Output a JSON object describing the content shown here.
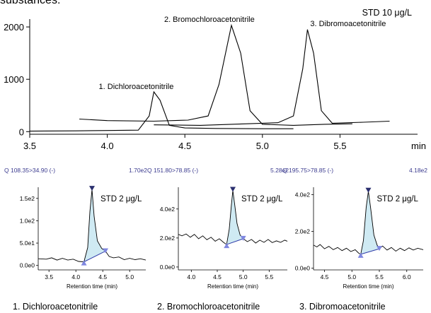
{
  "header_text": "substances:",
  "chart_data": [
    {
      "type": "line",
      "label": "STD 10 μg/L",
      "xlim": [
        3.5,
        6.0
      ],
      "ylim": [
        -50,
        2150
      ],
      "xticks": [
        3.5,
        4.0,
        4.5,
        5.0,
        5.5
      ],
      "xtick_labels": [
        "3.5",
        "4.0",
        "4.5",
        "5.0",
        "5.5"
      ],
      "yticks": [
        0,
        1000,
        2000
      ],
      "ytick_labels": [
        "0",
        "1000",
        "2000"
      ],
      "x_unit": "min",
      "series": [
        {
          "points": [
            [
              3.5,
              10
            ],
            [
              3.8,
              15
            ],
            [
              4.0,
              22
            ],
            [
              4.2,
              28
            ],
            [
              4.27,
              300
            ],
            [
              4.3,
              760
            ],
            [
              4.34,
              600
            ],
            [
              4.4,
              120
            ],
            [
              4.5,
              70
            ],
            [
              4.7,
              60
            ],
            [
              5.0,
              55
            ],
            [
              5.2,
              55
            ]
          ]
        },
        {
          "points": [
            [
              3.82,
              240
            ],
            [
              4.0,
              210
            ],
            [
              4.3,
              200
            ],
            [
              4.52,
              220
            ],
            [
              4.65,
              300
            ],
            [
              4.72,
              900
            ],
            [
              4.8,
              2030
            ],
            [
              4.86,
              1500
            ],
            [
              4.92,
              400
            ],
            [
              5.0,
              140
            ],
            [
              5.2,
              120
            ],
            [
              5.4,
              140
            ],
            [
              5.58,
              150
            ]
          ]
        },
        {
          "points": [
            [
              4.3,
              130
            ],
            [
              4.6,
              120
            ],
            [
              4.9,
              150
            ],
            [
              5.1,
              170
            ],
            [
              5.2,
              300
            ],
            [
              5.26,
              1200
            ],
            [
              5.29,
              1950
            ],
            [
              5.33,
              1500
            ],
            [
              5.38,
              400
            ],
            [
              5.45,
              160
            ],
            [
              5.65,
              180
            ],
            [
              5.82,
              200
            ]
          ]
        }
      ],
      "annotations": [
        {
          "text": "1. Dichloroacetonitrile",
          "x": 4.31,
          "y": 760
        },
        {
          "text": "2. Bromochloroacetonitrile",
          "x": 4.8,
          "y": 2030
        },
        {
          "text": "3. Dibromoacetonitrile",
          "x": 5.29,
          "y": 1950
        }
      ]
    },
    {
      "type": "line",
      "title": "Q 108.35>34.90 (-)",
      "max_label": "1.70e2",
      "label": "STD 2 μg/L",
      "xlabel": "Retention time (min)",
      "xlim": [
        3.3,
        5.3
      ],
      "ylim": [
        -10,
        175
      ],
      "xticks": [
        3.5,
        4.0,
        4.5,
        5.0
      ],
      "xtick_labels": [
        "3.5",
        "4.0",
        "4.5",
        "5.0"
      ],
      "yticks": [
        0,
        50,
        100,
        150
      ],
      "ytick_labels": [
        "0.0e0",
        "5.0e1",
        "1.0e2",
        "1.5e2"
      ],
      "peak": {
        "x": 4.3,
        "y": 170,
        "start": [
          4.15,
          8
        ],
        "end": [
          4.55,
          32
        ]
      },
      "values": [
        [
          3.3,
          15
        ],
        [
          3.45,
          14
        ],
        [
          3.55,
          17
        ],
        [
          3.65,
          12
        ],
        [
          3.75,
          16
        ],
        [
          3.85,
          12
        ],
        [
          3.95,
          14
        ],
        [
          4.05,
          9
        ],
        [
          4.15,
          8
        ],
        [
          4.22,
          40
        ],
        [
          4.26,
          120
        ],
        [
          4.3,
          170
        ],
        [
          4.34,
          110
        ],
        [
          4.4,
          55
        ],
        [
          4.48,
          38
        ],
        [
          4.55,
          32
        ],
        [
          4.62,
          20
        ],
        [
          4.7,
          17
        ],
        [
          4.8,
          19
        ],
        [
          4.9,
          13
        ],
        [
          5.0,
          16
        ],
        [
          5.1,
          13
        ],
        [
          5.2,
          15
        ],
        [
          5.3,
          12
        ]
      ]
    },
    {
      "type": "line",
      "title": "Q 151.80>78.85 (-)",
      "max_label": "5.28e2",
      "label": "STD 2 μg/L",
      "xlabel": "Retention time (min)",
      "xlim": [
        3.75,
        5.85
      ],
      "ylim": [
        -20,
        550
      ],
      "xticks": [
        4.0,
        4.5,
        5.0,
        5.5
      ],
      "xtick_labels": [
        "4.0",
        "4.5",
        "5.0",
        "5.5"
      ],
      "yticks": [
        0,
        200,
        400
      ],
      "ytick_labels": [
        "0.0e0",
        "2.0e2",
        "4.0e2"
      ],
      "peak": {
        "x": 4.8,
        "y": 528,
        "start": [
          4.68,
          155
        ],
        "end": [
          5.0,
          195
        ]
      },
      "values": [
        [
          3.75,
          225
        ],
        [
          3.82,
          215
        ],
        [
          3.9,
          228
        ],
        [
          3.98,
          205
        ],
        [
          4.06,
          225
        ],
        [
          4.14,
          195
        ],
        [
          4.22,
          215
        ],
        [
          4.3,
          188
        ],
        [
          4.38,
          205
        ],
        [
          4.46,
          178
        ],
        [
          4.54,
          195
        ],
        [
          4.62,
          170
        ],
        [
          4.68,
          155
        ],
        [
          4.73,
          260
        ],
        [
          4.77,
          420
        ],
        [
          4.8,
          528
        ],
        [
          4.84,
          420
        ],
        [
          4.88,
          300
        ],
        [
          4.94,
          220
        ],
        [
          5.0,
          195
        ],
        [
          5.08,
          175
        ],
        [
          5.16,
          190
        ],
        [
          5.24,
          165
        ],
        [
          5.32,
          185
        ],
        [
          5.4,
          170
        ],
        [
          5.48,
          190
        ],
        [
          5.56,
          168
        ],
        [
          5.64,
          180
        ],
        [
          5.72,
          170
        ],
        [
          5.8,
          185
        ],
        [
          5.85,
          178
        ]
      ]
    },
    {
      "type": "line",
      "title": "Q 195.75>78.85 (-)",
      "max_label": "4.18e2",
      "label": "STD 2 μg/L",
      "xlabel": "Retention time (min)",
      "xlim": [
        4.3,
        6.3
      ],
      "ylim": [
        -10,
        440
      ],
      "xticks": [
        4.5,
        5.0,
        5.5,
        6.0
      ],
      "xtick_labels": [
        "4.5",
        "5.0",
        "5.5",
        "6.0"
      ],
      "yticks": [
        0,
        200,
        400
      ],
      "ytick_labels": [
        "0.0e0",
        "2.0e2",
        "4.0e2"
      ],
      "peak": {
        "x": 5.3,
        "y": 418,
        "start": [
          5.16,
          75
        ],
        "end": [
          5.5,
          105
        ]
      },
      "values": [
        [
          4.3,
          125
        ],
        [
          4.36,
          115
        ],
        [
          4.42,
          128
        ],
        [
          4.5,
          105
        ],
        [
          4.58,
          118
        ],
        [
          4.66,
          100
        ],
        [
          4.74,
          112
        ],
        [
          4.82,
          95
        ],
        [
          4.9,
          108
        ],
        [
          4.98,
          90
        ],
        [
          5.06,
          100
        ],
        [
          5.12,
          82
        ],
        [
          5.16,
          75
        ],
        [
          5.21,
          150
        ],
        [
          5.26,
          330
        ],
        [
          5.3,
          418
        ],
        [
          5.34,
          330
        ],
        [
          5.4,
          180
        ],
        [
          5.46,
          125
        ],
        [
          5.5,
          105
        ],
        [
          5.56,
          120
        ],
        [
          5.64,
          98
        ],
        [
          5.72,
          112
        ],
        [
          5.8,
          92
        ],
        [
          5.88,
          108
        ],
        [
          5.96,
          95
        ],
        [
          6.04,
          110
        ],
        [
          6.12,
          98
        ],
        [
          6.2,
          108
        ],
        [
          6.3,
          100
        ]
      ]
    }
  ],
  "captions": [
    "1. Dichloroacetonitrile",
    "2. Bromochloroacetonitrile",
    "3. Dibromoacetonitrile"
  ],
  "colors": {
    "trace": "#000000",
    "title": "#3b3b8f",
    "baseline": "#2e3aa8",
    "marker": "#7f87e0",
    "apex": "#2a2f6e",
    "fill": "#cfeaf3"
  }
}
